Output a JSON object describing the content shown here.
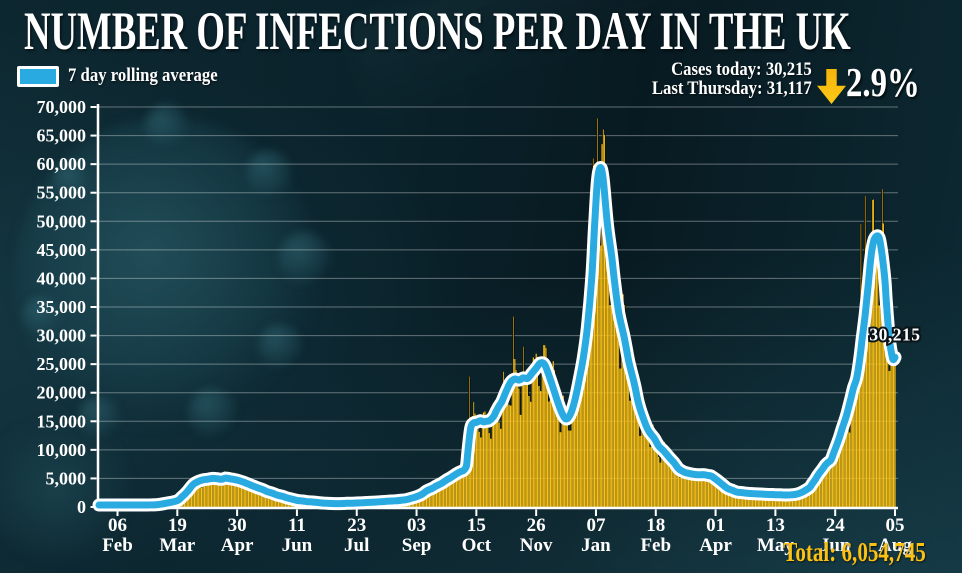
{
  "header": {
    "title": "NUMBER OF INFECTIONS PER DAY IN THE UK"
  },
  "legend": {
    "label": "7 day rolling average",
    "swatch_color": "#29ABE2"
  },
  "stats": {
    "cases_today_label": "Cases today:",
    "cases_today_value": "30,215",
    "last_thursday_label": "Last Thursday:",
    "last_thursday_value": "31,117",
    "change_percent": "2.9%",
    "arrow_direction": "down",
    "arrow_color": "#FDC112"
  },
  "footer": {
    "total_label": "Total:",
    "total_value": "6,054,745"
  },
  "chart_data": {
    "type": "bar+line",
    "title": "NUMBER OF INFECTIONS PER DAY IN THE UK",
    "xlabel": "",
    "ylabel": "",
    "ylim": [
      0,
      70000
    ],
    "ytick_step": 5000,
    "grid": true,
    "bar_color": "#FDC112",
    "line_color": "#29ABE2",
    "line_outline_color": "#FFFFFF",
    "background_color": "#0a222b",
    "start_date": "2020-01-24",
    "end_date": "2021-08-05",
    "total_days": 559,
    "ytick_labels": [
      "0",
      "5,000",
      "10,000",
      "15,000",
      "20,000",
      "25,000",
      "30,000",
      "35,000",
      "40,000",
      "45,000",
      "50,000",
      "55,000",
      "60,000",
      "65,000",
      "70,000"
    ],
    "x_ticks": [
      {
        "t": 13,
        "day": "06",
        "month": "Feb"
      },
      {
        "t": 55,
        "day": "19",
        "month": "Mar"
      },
      {
        "t": 97,
        "day": "30",
        "month": "Apr"
      },
      {
        "t": 139,
        "day": "11",
        "month": "Jun"
      },
      {
        "t": 181,
        "day": "23",
        "month": "Jul"
      },
      {
        "t": 223,
        "day": "03",
        "month": "Sep"
      },
      {
        "t": 265,
        "day": "15",
        "month": "Oct"
      },
      {
        "t": 307,
        "day": "26",
        "month": "Nov"
      },
      {
        "t": 349,
        "day": "07",
        "month": "Jan"
      },
      {
        "t": 391,
        "day": "18",
        "month": "Feb"
      },
      {
        "t": 433,
        "day": "01",
        "month": "Apr"
      },
      {
        "t": 475,
        "day": "13",
        "month": "May"
      },
      {
        "t": 517,
        "day": "24",
        "month": "Jun"
      },
      {
        "t": 559,
        "day": "05",
        "month": "Aug"
      }
    ],
    "annotation": {
      "text": "30,215",
      "day": 541,
      "value": 30215
    },
    "rolling_avg_series": {
      "unit": "days since 2020-01-24, 7-day rolling average of daily infections",
      "points": [
        [
          0,
          150
        ],
        [
          6,
          150
        ],
        [
          13,
          200
        ],
        [
          20,
          230
        ],
        [
          27,
          270
        ],
        [
          34,
          330
        ],
        [
          41,
          420
        ],
        [
          48,
          700
        ],
        [
          55,
          1100
        ],
        [
          58,
          1700
        ],
        [
          62,
          2700
        ],
        [
          66,
          3900
        ],
        [
          69,
          4400
        ],
        [
          73,
          4750
        ],
        [
          76,
          4850
        ],
        [
          80,
          5000
        ],
        [
          83,
          4950
        ],
        [
          86,
          4850
        ],
        [
          89,
          5050
        ],
        [
          93,
          4900
        ],
        [
          97,
          4700
        ],
        [
          101,
          4400
        ],
        [
          104,
          4100
        ],
        [
          108,
          3700
        ],
        [
          111,
          3400
        ],
        [
          115,
          3050
        ],
        [
          118,
          2700
        ],
        [
          122,
          2400
        ],
        [
          125,
          2100
        ],
        [
          129,
          1850
        ],
        [
          132,
          1600
        ],
        [
          136,
          1350
        ],
        [
          139,
          1150
        ],
        [
          143,
          1050
        ],
        [
          146,
          950
        ],
        [
          150,
          870
        ],
        [
          153,
          800
        ],
        [
          156,
          720
        ],
        [
          160,
          650
        ],
        [
          164,
          610
        ],
        [
          167,
          590
        ],
        [
          171,
          610
        ],
        [
          174,
          640
        ],
        [
          178,
          670
        ],
        [
          181,
          700
        ],
        [
          185,
          740
        ],
        [
          188,
          780
        ],
        [
          192,
          830
        ],
        [
          195,
          880
        ],
        [
          199,
          940
        ],
        [
          202,
          1000
        ],
        [
          206,
          1050
        ],
        [
          209,
          1100
        ],
        [
          213,
          1200
        ],
        [
          216,
          1300
        ],
        [
          219,
          1500
        ],
        [
          223,
          1800
        ],
        [
          227,
          2250
        ],
        [
          230,
          2800
        ],
        [
          234,
          3250
        ],
        [
          237,
          3700
        ],
        [
          241,
          4200
        ],
        [
          244,
          4700
        ],
        [
          248,
          5300
        ],
        [
          251,
          5800
        ],
        [
          254,
          6200
        ],
        [
          256,
          6400
        ],
        [
          258,
          7200
        ],
        [
          259,
          9500
        ],
        [
          261,
          13800
        ],
        [
          263,
          14700
        ],
        [
          265,
          14800
        ],
        [
          268,
          15100
        ],
        [
          270,
          14900
        ],
        [
          272,
          15000
        ],
        [
          274,
          15100
        ],
        [
          277,
          15800
        ],
        [
          279,
          16800
        ],
        [
          281,
          17700
        ],
        [
          283,
          18500
        ],
        [
          286,
          20300
        ],
        [
          289,
          21800
        ],
        [
          292,
          22400
        ],
        [
          295,
          22200
        ],
        [
          298,
          22600
        ],
        [
          301,
          22500
        ],
        [
          304,
          23400
        ],
        [
          307,
          24300
        ],
        [
          310,
          25200
        ],
        [
          313,
          24900
        ],
        [
          316,
          23000
        ],
        [
          319,
          20800
        ],
        [
          322,
          18500
        ],
        [
          325,
          16500
        ],
        [
          328,
          15400
        ],
        [
          331,
          16200
        ],
        [
          334,
          18500
        ],
        [
          337,
          22000
        ],
        [
          340,
          26000
        ],
        [
          343,
          31500
        ],
        [
          346,
          40000
        ],
        [
          348,
          49000
        ],
        [
          350,
          57000
        ],
        [
          352,
          59400
        ],
        [
          354,
          57500
        ],
        [
          357,
          49500
        ],
        [
          360,
          44000
        ],
        [
          362,
          39500
        ],
        [
          365,
          34000
        ],
        [
          369,
          29500
        ],
        [
          372,
          25500
        ],
        [
          376,
          21500
        ],
        [
          379,
          18000
        ],
        [
          383,
          15000
        ],
        [
          386,
          13300
        ],
        [
          390,
          12000
        ],
        [
          393,
          10700
        ],
        [
          397,
          9700
        ],
        [
          400,
          8800
        ],
        [
          404,
          7700
        ],
        [
          407,
          6700
        ],
        [
          411,
          6100
        ],
        [
          414,
          5900
        ],
        [
          418,
          5700
        ],
        [
          421,
          5650
        ],
        [
          425,
          5650
        ],
        [
          428,
          5500
        ],
        [
          430,
          5400
        ],
        [
          434,
          4700
        ],
        [
          438,
          3900
        ],
        [
          441,
          3300
        ],
        [
          445,
          2900
        ],
        [
          448,
          2600
        ],
        [
          452,
          2500
        ],
        [
          455,
          2400
        ],
        [
          459,
          2350
        ],
        [
          462,
          2300
        ],
        [
          466,
          2250
        ],
        [
          469,
          2200
        ],
        [
          473,
          2180
        ],
        [
          476,
          2150
        ],
        [
          480,
          2120
        ],
        [
          483,
          2100
        ],
        [
          487,
          2150
        ],
        [
          490,
          2250
        ],
        [
          493,
          2500
        ],
        [
          496,
          2900
        ],
        [
          499,
          3400
        ],
        [
          501,
          4100
        ],
        [
          503,
          4800
        ],
        [
          505,
          5600
        ],
        [
          508,
          6600
        ],
        [
          510,
          7300
        ],
        [
          512,
          7800
        ],
        [
          514,
          8200
        ],
        [
          516,
          9500
        ],
        [
          518,
          10800
        ],
        [
          520,
          12200
        ],
        [
          522,
          13800
        ],
        [
          525,
          16100
        ],
        [
          528,
          19000
        ],
        [
          530,
          21000
        ],
        [
          532,
          22500
        ],
        [
          534,
          25500
        ],
        [
          536,
          29500
        ],
        [
          538,
          33500
        ],
        [
          540,
          38300
        ],
        [
          542,
          43500
        ],
        [
          544,
          46500
        ],
        [
          546,
          47400
        ],
        [
          548,
          47000
        ],
        [
          550,
          44000
        ],
        [
          552,
          39500
        ],
        [
          553,
          35500
        ],
        [
          555,
          29500
        ],
        [
          557,
          26300
        ],
        [
          558,
          25800
        ],
        [
          559,
          26200
        ]
      ]
    },
    "bar_outliers": {
      "260": 22800,
      "291": 33300,
      "347": 61000,
      "350": 68000,
      "353": 63500,
      "535": 49500,
      "538": 54400
    },
    "weekday_factors": [
      0.98,
      0.85,
      0.78,
      1.02,
      1.15,
      1.1,
      1.05
    ]
  }
}
